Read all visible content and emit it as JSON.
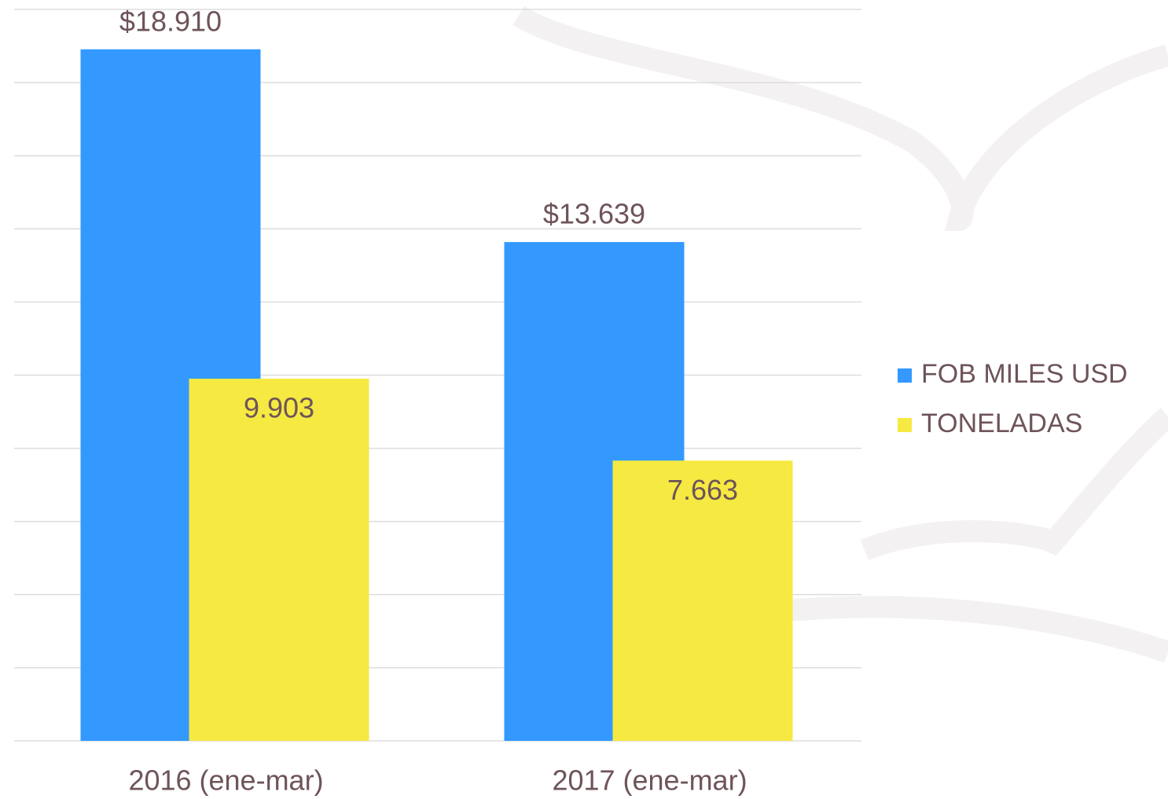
{
  "chart_data": {
    "type": "bar",
    "categories": [
      "2016 (ene-mar)",
      "2017 (ene-mar)"
    ],
    "series": [
      {
        "name": "FOB MILES USD",
        "color": "#3399ff",
        "values": [
          18910,
          13639
        ],
        "value_labels": [
          "$18.910",
          "$13.639"
        ]
      },
      {
        "name": "TONELADAS",
        "color": "#f5e942",
        "values": [
          9903,
          7663
        ],
        "value_labels": [
          "9.903",
          "7.663"
        ]
      }
    ],
    "ylim": [
      0,
      20000
    ],
    "yticks": [
      0,
      2000,
      4000,
      6000,
      8000,
      10000,
      12000,
      14000,
      16000,
      18000,
      20000
    ],
    "ytick_labels": false,
    "grid": true,
    "legend": "right"
  }
}
